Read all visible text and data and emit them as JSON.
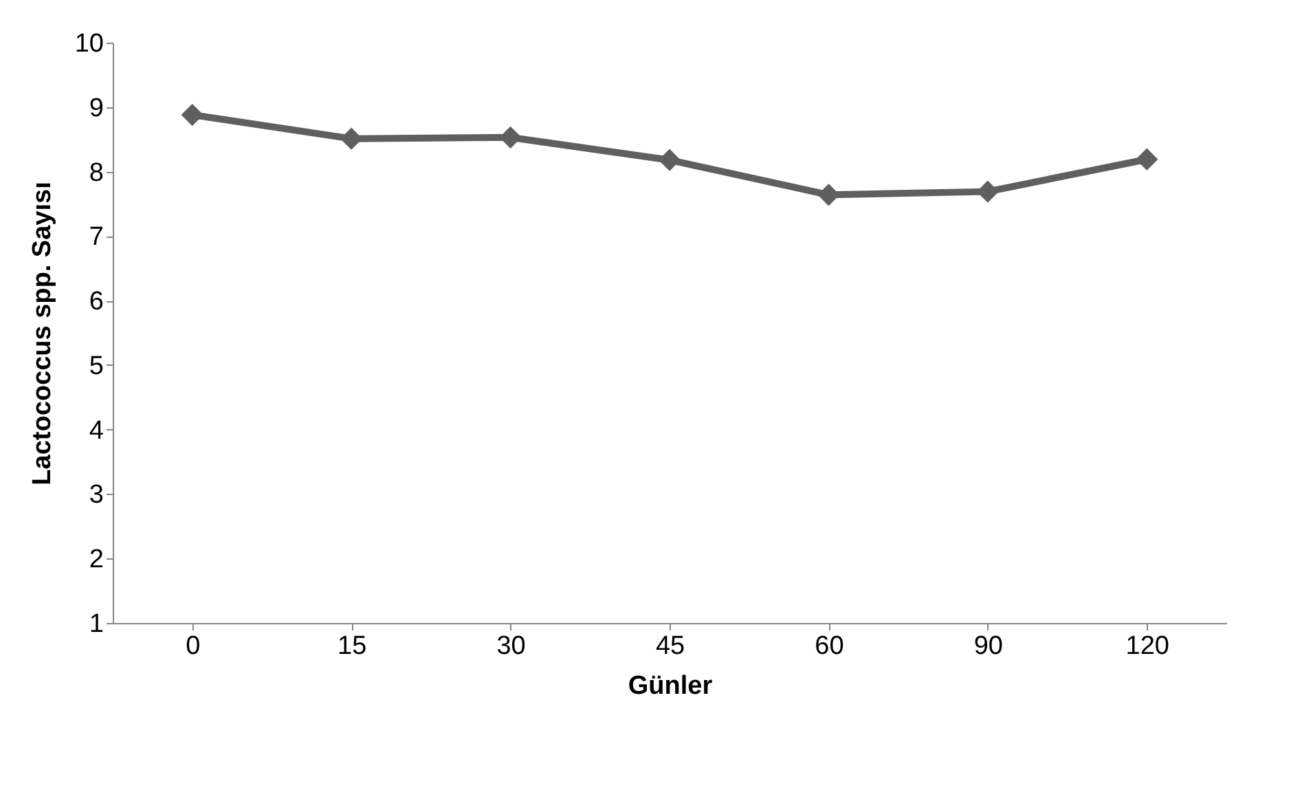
{
  "chart_data": {
    "type": "line",
    "xlabel": "Günler",
    "ylabel": "Lactococcus spp. Sayısı",
    "categories": [
      "0",
      "15",
      "30",
      "45",
      "60",
      "90",
      "120"
    ],
    "series": [
      {
        "color": "#5f5f5f",
        "values": [
          8.88,
          8.51,
          8.53,
          8.18,
          7.64,
          7.69,
          8.19
        ]
      }
    ],
    "ylim": [
      1,
      10
    ],
    "yticks": [
      1,
      2,
      3,
      4,
      5,
      6,
      7,
      8,
      9,
      10
    ],
    "grid": false,
    "marker": "diamond",
    "line_style": "solid"
  }
}
